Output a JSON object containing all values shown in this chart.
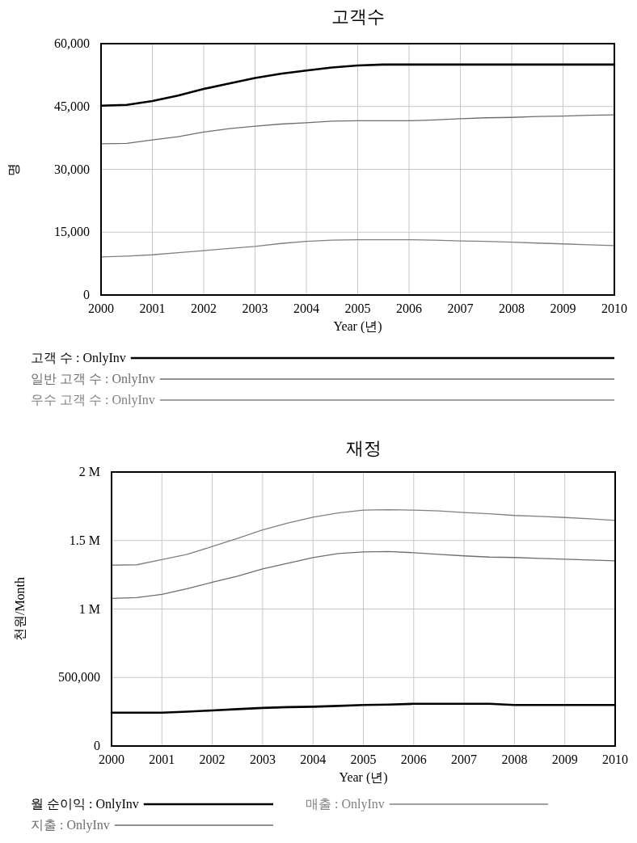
{
  "chart_data": [
    {
      "type": "line",
      "title": "고객수",
      "xlabel": "Year (년)",
      "ylabel": "명",
      "grid": true,
      "legend": "bottom",
      "xlim": [
        2000,
        2010
      ],
      "xticks": [
        2000,
        2001,
        2002,
        2003,
        2004,
        2005,
        2006,
        2007,
        2008,
        2009,
        2010
      ],
      "ylim": [
        0,
        60000
      ],
      "yticks": [
        0,
        {
          "value": 15000,
          "label": "15,000"
        },
        {
          "value": 30000,
          "label": "30,000"
        },
        {
          "value": 45000,
          "label": "45,000"
        },
        {
          "value": 60000,
          "label": "60,000"
        }
      ],
      "x": [
        2000,
        2000.5,
        2001,
        2001.5,
        2002,
        2002.5,
        2003,
        2003.5,
        2004,
        2004.5,
        2005,
        2005.5,
        2006,
        2006.5,
        2007,
        2007.5,
        2008,
        2008.5,
        2009,
        2009.5,
        2010
      ],
      "series": [
        {
          "name": "고객 수 : OnlyInv",
          "color": "#000000",
          "values": [
            45200,
            45400,
            46300,
            47600,
            49200,
            50500,
            51800,
            52800,
            53600,
            54300,
            54800,
            55000,
            55000,
            55000,
            55000,
            55000,
            55000,
            55000,
            55000,
            55000,
            55000
          ]
        },
        {
          "name": "일반 고객 수 : OnlyInv",
          "color": "#6e6e6e",
          "values": [
            36100,
            36200,
            37000,
            37800,
            38900,
            39700,
            40300,
            40800,
            41100,
            41500,
            41600,
            41600,
            41600,
            41800,
            42100,
            42300,
            42400,
            42600,
            42700,
            42900,
            43000
          ]
        },
        {
          "name": "우수 고객 수 : OnlyInv",
          "color": "#808080",
          "values": [
            9100,
            9300,
            9600,
            10100,
            10600,
            11100,
            11600,
            12300,
            12800,
            13100,
            13200,
            13200,
            13200,
            13100,
            12900,
            12800,
            12600,
            12400,
            12200,
            12000,
            11800
          ]
        }
      ]
    },
    {
      "type": "line",
      "title": "재정",
      "xlabel": "Year (년)",
      "ylabel": "천원/Month",
      "grid": true,
      "legend": "bottom",
      "xlim": [
        2000,
        2010
      ],
      "xticks": [
        2000,
        2001,
        2002,
        2003,
        2004,
        2005,
        2006,
        2007,
        2008,
        2009,
        2010
      ],
      "ylim": [
        0,
        2000000
      ],
      "yticks": [
        0,
        {
          "value": 500000,
          "label": "500,000"
        },
        {
          "value": 1000000,
          "label": "1 M"
        },
        {
          "value": 1500000,
          "label": "1.5 M"
        },
        {
          "value": 2000000,
          "label": "2 M"
        }
      ],
      "x": [
        2000,
        2000.5,
        2001,
        2001.5,
        2002,
        2002.5,
        2003,
        2003.5,
        2004,
        2004.5,
        2005,
        2005.5,
        2006,
        2006.5,
        2007,
        2007.5,
        2008,
        2008.5,
        2009,
        2009.5,
        2010
      ],
      "series": [
        {
          "name": "월 순이익 : OnlyInv",
          "color": "#000000",
          "values": [
            243000,
            243000,
            243000,
            251000,
            260000,
            269000,
            278000,
            284000,
            287000,
            293000,
            299000,
            302000,
            308000,
            308000,
            308000,
            308000,
            299000,
            299000,
            299000,
            299000,
            299000
          ]
        },
        {
          "name": "지출 : OnlyInv",
          "color": "#6e6e6e",
          "values": [
            1077000,
            1083000,
            1107000,
            1148000,
            1195000,
            1240000,
            1293000,
            1334000,
            1376000,
            1405000,
            1417000,
            1420000,
            1411000,
            1399000,
            1388000,
            1379000,
            1376000,
            1370000,
            1364000,
            1358000,
            1352000
          ]
        },
        {
          "name": "매출 : OnlyInv",
          "color": "#808080",
          "values": [
            1320000,
            1323000,
            1361000,
            1399000,
            1456000,
            1515000,
            1577000,
            1627000,
            1671000,
            1701000,
            1722000,
            1725000,
            1722000,
            1716000,
            1704000,
            1695000,
            1683000,
            1676000,
            1668000,
            1658000,
            1647000
          ]
        }
      ]
    }
  ]
}
